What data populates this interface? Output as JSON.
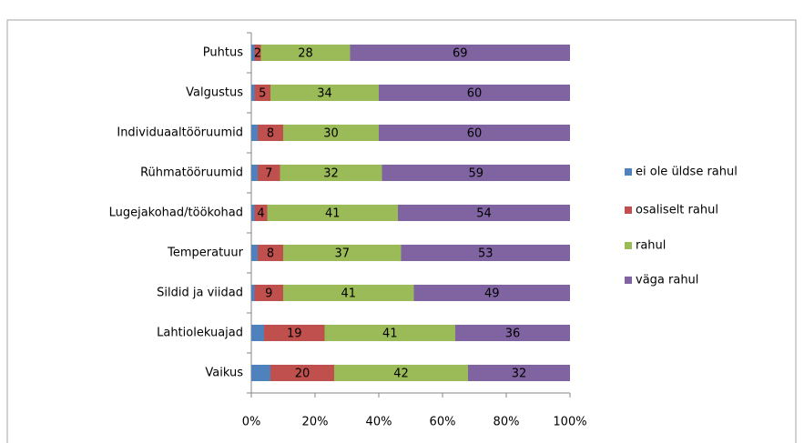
{
  "chart_data": {
    "type": "stacked_bar_horizontal_100",
    "categories": [
      "Puhtus",
      "Valgustus",
      "Individuaaltööruumid",
      "Rühmatööruumid",
      "Lugejakohad/töökohad",
      "Temperatuur",
      "Sildid ja viidad",
      "Lahtiolekuajad",
      "Vaikus"
    ],
    "series": [
      {
        "name": "ei ole üldse rahul",
        "color": "#4f81bd",
        "data_labels": false,
        "values": [
          1,
          1,
          2,
          2,
          1,
          2,
          1,
          4,
          6
        ]
      },
      {
        "name": "osaliselt rahul",
        "color": "#c0504d",
        "data_labels": true,
        "values": [
          2,
          5,
          8,
          7,
          4,
          8,
          9,
          19,
          20
        ]
      },
      {
        "name": "rahul",
        "color": "#9bbb59",
        "data_labels": true,
        "values": [
          28,
          34,
          30,
          32,
          41,
          37,
          41,
          41,
          42
        ]
      },
      {
        "name": "väga rahul",
        "color": "#8064a2",
        "data_labels": true,
        "values": [
          69,
          60,
          60,
          59,
          54,
          53,
          49,
          36,
          32
        ]
      }
    ],
    "xlim": [
      0,
      100
    ],
    "xticks": [
      {
        "value": 0,
        "label": "0%"
      },
      {
        "value": 20,
        "label": "20%"
      },
      {
        "value": 40,
        "label": "40%"
      },
      {
        "value": 60,
        "label": "60%"
      },
      {
        "value": 80,
        "label": "80%"
      },
      {
        "value": 100,
        "label": "100%"
      }
    ],
    "legend": "right"
  }
}
